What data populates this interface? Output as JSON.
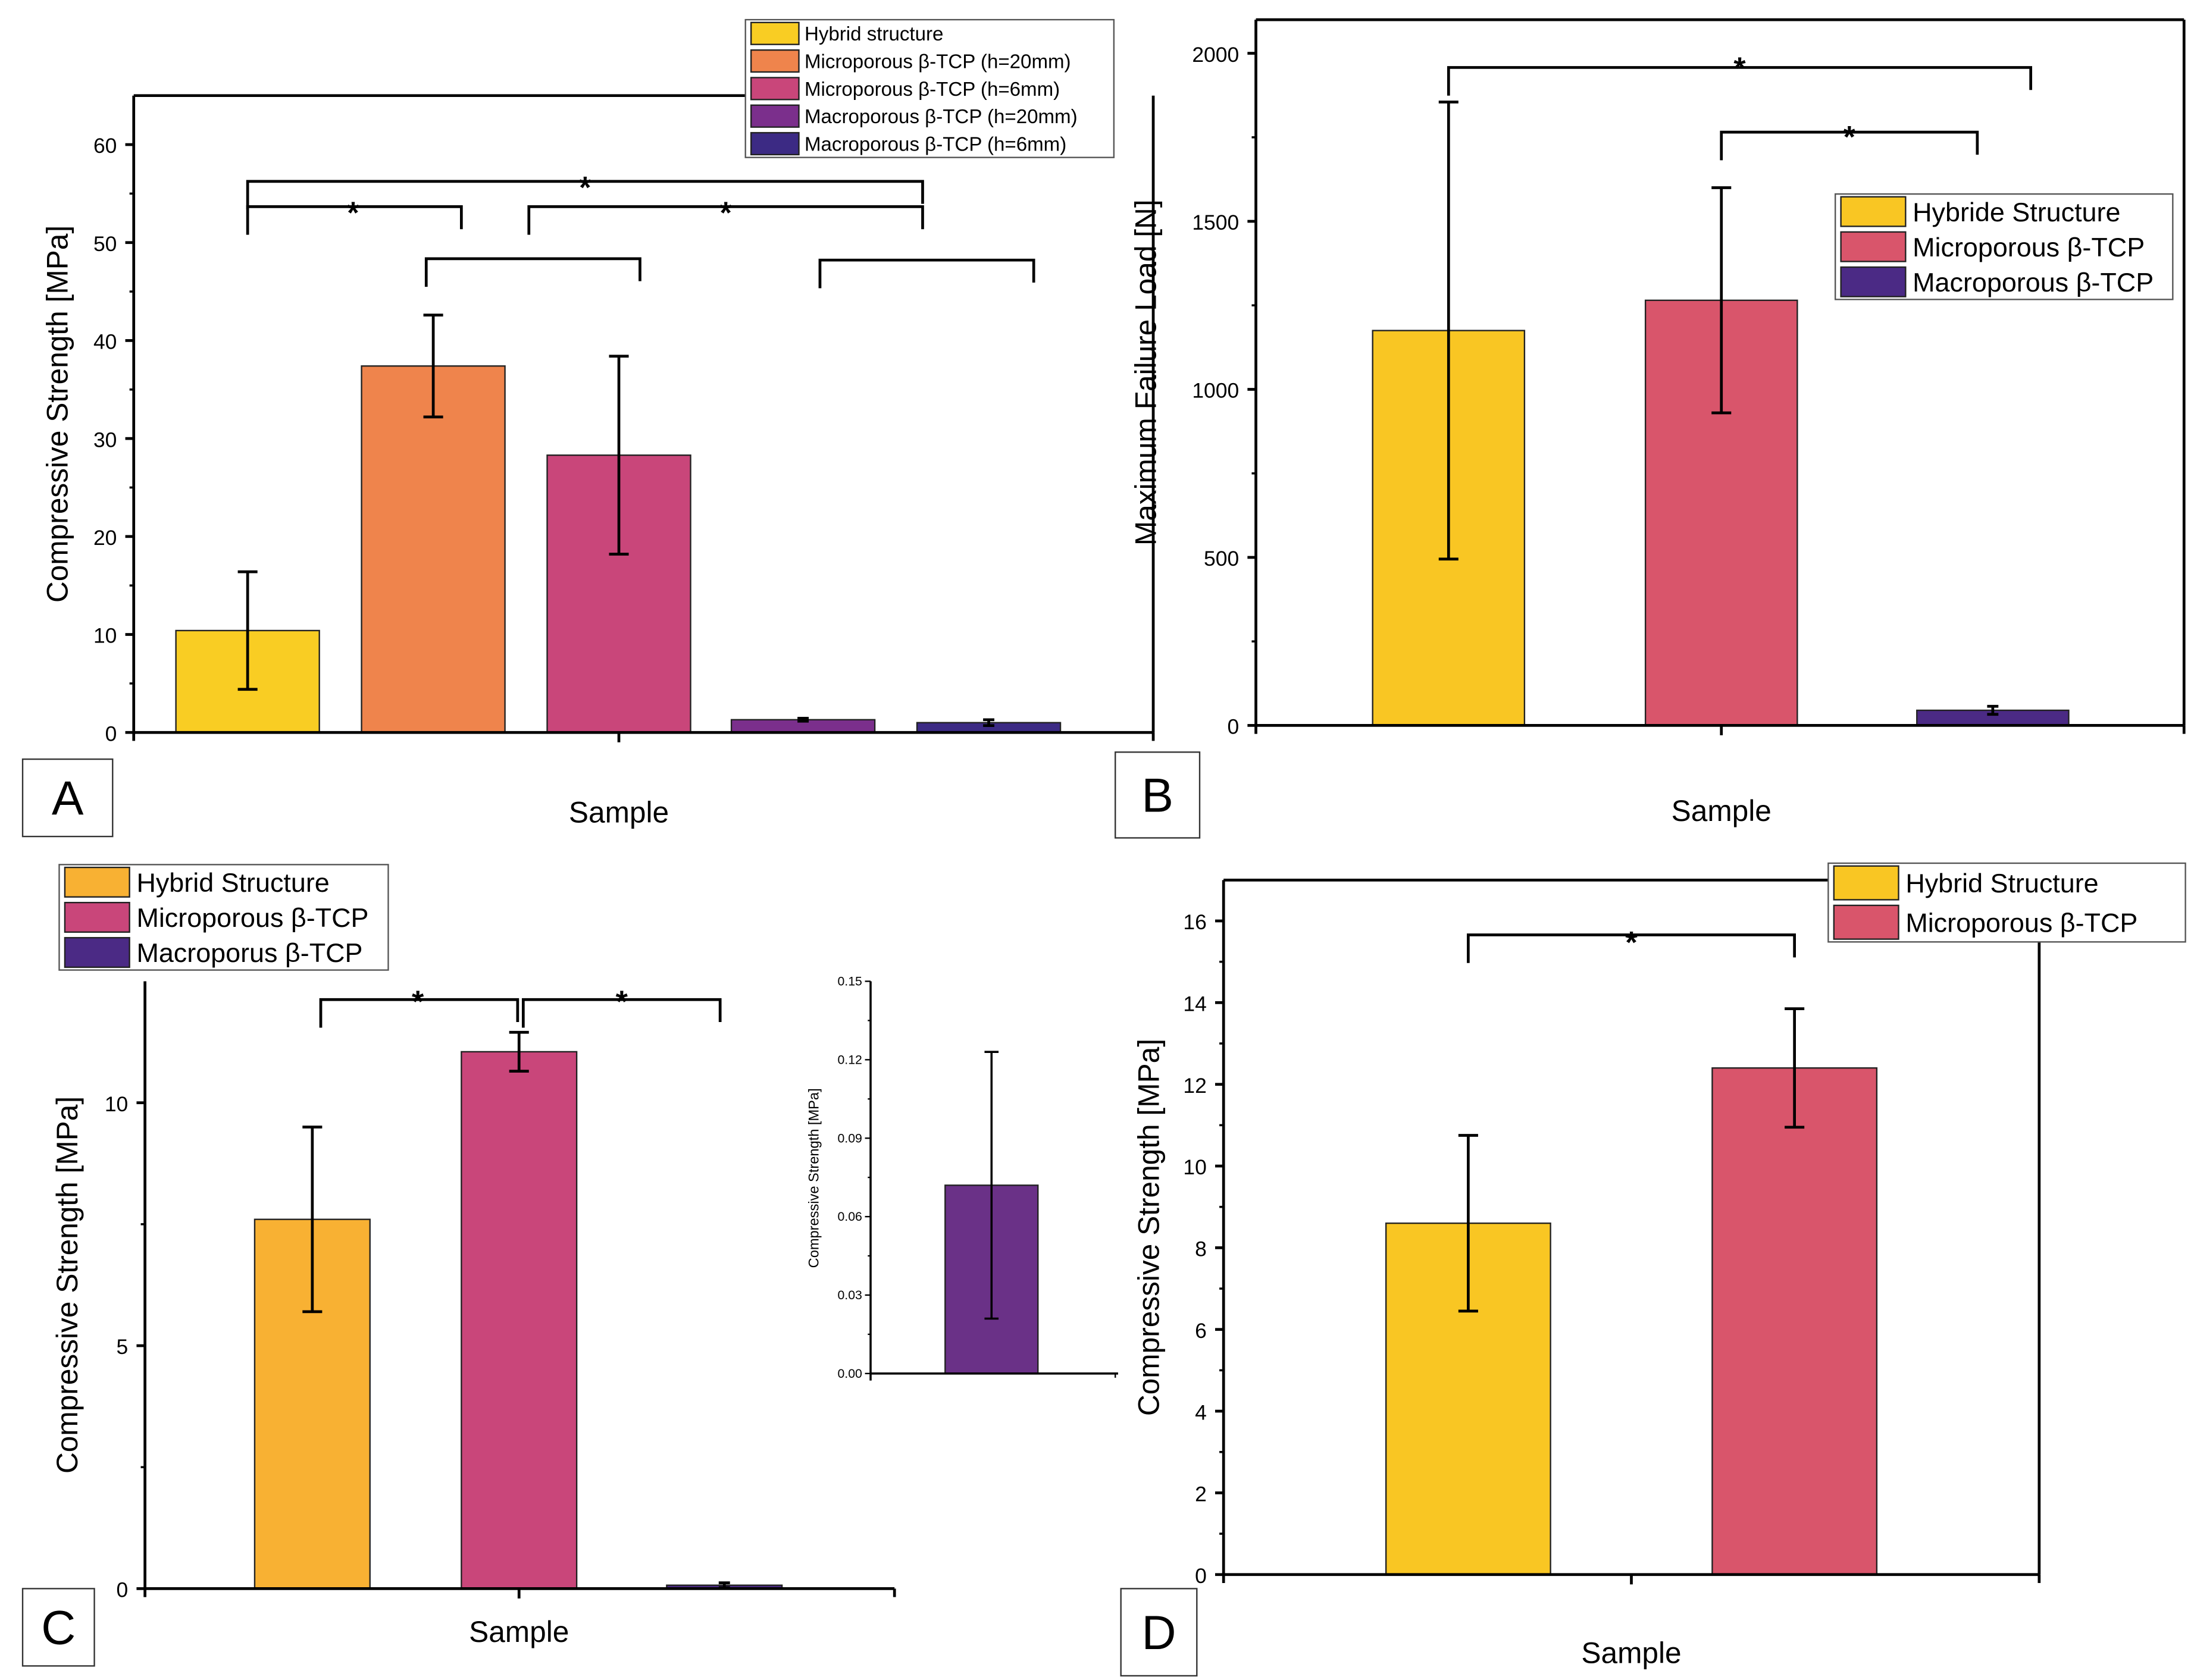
{
  "chart_data": [
    {
      "type": "bar",
      "panel": "A",
      "xlabel": "Sample",
      "ylabel": "Compressive Strength [MPa]",
      "ylim": [
        0,
        65
      ],
      "yticks": [
        0,
        10,
        20,
        30,
        40,
        50,
        60
      ],
      "categories": [
        "Hybrid structure",
        "Microporous β-TCP (h=20mm)",
        "Microporous β-TCP (h=6mm)",
        "Macroporous β-TCP (h=20mm)",
        "Macroporous β-TCP (h=6mm)"
      ],
      "values": [
        10.4,
        37.4,
        28.3,
        1.3,
        1.0
      ],
      "errors": [
        6.0,
        5.2,
        10.1,
        0.15,
        0.3
      ],
      "colors": [
        "#f9cd23",
        "#ef844c",
        "#c9467a",
        "#7b2f8c",
        "#3c2a84"
      ],
      "legend": [
        "Hybrid structure",
        "Microporous β-TCP (h=20mm)",
        "Microporous β-TCP (h=6mm)",
        "Macroporous β-TCP (h=20mm)",
        "Macroporous β-TCP (h=6mm)"
      ],
      "legend_position": "top-right",
      "significance": [
        "*",
        "*",
        "*"
      ]
    },
    {
      "type": "bar",
      "panel": "B",
      "xlabel": "Sample",
      "ylabel": "Maximum Failure Load [N]",
      "ylim": [
        0,
        2100
      ],
      "yticks": [
        0,
        500,
        1000,
        1500,
        2000
      ],
      "categories": [
        "Hybride Structure",
        "Microporous β-TCP",
        "Macroporous β-TCP"
      ],
      "values": [
        1175,
        1265,
        45
      ],
      "errors": [
        680,
        335,
        12
      ],
      "colors": [
        "#f9c623",
        "#d9556b",
        "#4b2a85"
      ],
      "legend": [
        "Hybride Structure",
        "Microporous β-TCP",
        "Macroporous β-TCP"
      ],
      "legend_position": "top-right",
      "significance": [
        "*",
        "*"
      ]
    },
    {
      "type": "bar",
      "panel": "C",
      "xlabel": "Sample",
      "ylabel": "Compressive Strength [MPa]",
      "ylim": [
        0,
        12.5
      ],
      "yticks": [
        0,
        5,
        10
      ],
      "categories": [
        "Hybrid Structure",
        "Microporous β-TCP",
        "Macroporus β-TCP"
      ],
      "values": [
        7.6,
        11.05,
        0.07
      ],
      "errors": [
        1.9,
        0.4,
        0.05
      ],
      "colors": [
        "#f8b133",
        "#c9467a",
        "#4b2a85"
      ],
      "legend": [
        "Hybrid Structure",
        "Microporous β-TCP",
        "Macroporus β-TCP"
      ],
      "legend_position": "top-left",
      "significance": [
        "*",
        "*"
      ],
      "inset": {
        "ylabel": "Compressive Strength [MPa]",
        "ylim": [
          0,
          0.15
        ],
        "yticks": [
          "0.00",
          "0.03",
          "0.06",
          "0.09",
          "0.12",
          "0.15"
        ],
        "values": [
          0.072
        ],
        "errors": [
          0.051
        ],
        "colors": [
          "#6a3187"
        ]
      }
    },
    {
      "type": "bar",
      "panel": "D",
      "xlabel": "Sample",
      "ylabel": "Compressive Strength [MPa]",
      "ylim": [
        0,
        17
      ],
      "yticks": [
        0,
        2,
        4,
        6,
        8,
        10,
        12,
        14,
        16
      ],
      "categories": [
        "Hybrid Structure",
        "Microporous β-TCP"
      ],
      "values": [
        8.6,
        12.4
      ],
      "errors": [
        2.15,
        1.45
      ],
      "colors": [
        "#f9c623",
        "#d9556b"
      ],
      "legend": [
        "Hybrid Structure",
        "Microporous β-TCP"
      ],
      "legend_position": "top-right",
      "significance": [
        "*"
      ]
    }
  ]
}
